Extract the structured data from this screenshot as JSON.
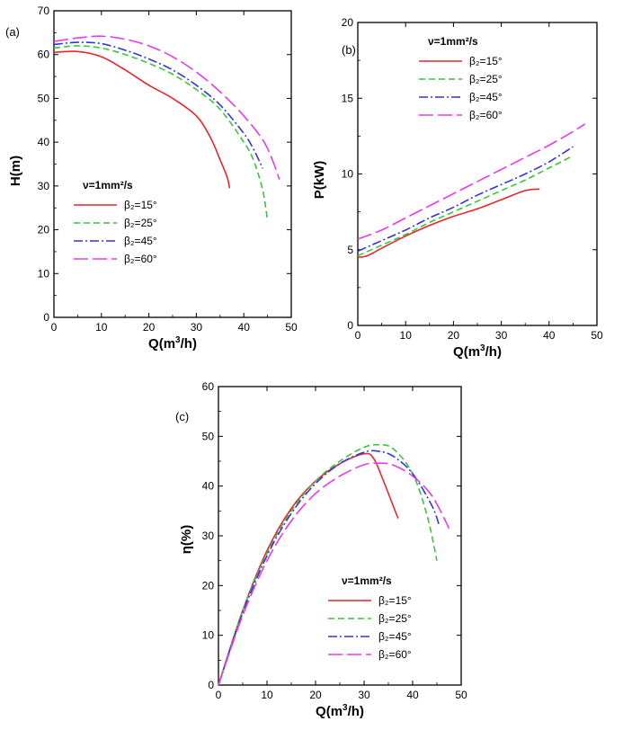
{
  "colors": {
    "beta15": "#e8262b",
    "beta25": "#3cc43c",
    "beta45": "#3535d8",
    "beta60": "#e83ae8"
  },
  "chart_data": [
    {
      "id": "a",
      "type": "line",
      "panel_label": "(a)",
      "xlabel_main": "Q(m",
      "xlabel_sup": "3",
      "xlabel_tail": "/h)",
      "ylabel": "H(m)",
      "xlim": [
        0,
        50
      ],
      "ylim": [
        0,
        70
      ],
      "xticks": [
        0,
        10,
        20,
        30,
        40,
        50
      ],
      "yticks": [
        0,
        10,
        20,
        30,
        40,
        50,
        60,
        70
      ],
      "legend_title": "ν=1mm²/s",
      "legend_position": "lower-left",
      "series": [
        {
          "name": "β₂=15°",
          "beta": "15",
          "style": "solid",
          "color_key": "beta15",
          "x": [
            0,
            5,
            10,
            15,
            20,
            25,
            30,
            33,
            35,
            36.5,
            37
          ],
          "y": [
            60.5,
            60.7,
            59.5,
            56.5,
            53,
            50,
            46,
            41,
            36,
            32,
            29.5
          ]
        },
        {
          "name": "β₂=25°",
          "beta": "25",
          "style": "dash",
          "color_key": "beta25",
          "x": [
            0,
            5,
            10,
            15,
            20,
            25,
            30,
            35,
            40,
            42,
            44,
            45
          ],
          "y": [
            61.5,
            62,
            61.5,
            60,
            58,
            55.5,
            52,
            47.5,
            40,
            36,
            29,
            22
          ]
        },
        {
          "name": "β₂=45°",
          "beta": "45",
          "style": "dashdot",
          "color_key": "beta45",
          "x": [
            0,
            5,
            10,
            15,
            20,
            25,
            30,
            35,
            40,
            42,
            44
          ],
          "y": [
            62.3,
            62.8,
            62.5,
            61,
            59,
            56.5,
            53,
            48.5,
            42,
            38.5,
            34
          ]
        },
        {
          "name": "β₂=60°",
          "beta": "60",
          "style": "longdash",
          "color_key": "beta60",
          "x": [
            0,
            5,
            10,
            15,
            20,
            25,
            30,
            35,
            40,
            44,
            46,
            47.5
          ],
          "y": [
            63,
            63.8,
            64.2,
            63.5,
            62,
            59.5,
            56,
            51.5,
            46,
            40.5,
            36,
            31.5
          ]
        }
      ]
    },
    {
      "id": "b",
      "type": "line",
      "panel_label": "(b)",
      "xlabel_main": "Q(m",
      "xlabel_sup": "3",
      "xlabel_tail": "/h)",
      "ylabel": "P(kW)",
      "xlim": [
        0,
        50
      ],
      "ylim": [
        0,
        20
      ],
      "xticks": [
        0,
        10,
        20,
        30,
        40,
        50
      ],
      "yticks": [
        0,
        5,
        10,
        15,
        20
      ],
      "legend_title": "ν=1mm²/s",
      "legend_position": "top-left",
      "series": [
        {
          "name": "β₂=15°",
          "beta": "15",
          "style": "solid",
          "color_key": "beta15",
          "x": [
            0,
            2,
            5,
            10,
            15,
            20,
            25,
            30,
            35,
            38
          ],
          "y": [
            4.5,
            4.6,
            5.1,
            5.9,
            6.6,
            7.2,
            7.7,
            8.3,
            8.9,
            9.0
          ]
        },
        {
          "name": "β₂=25°",
          "beta": "25",
          "style": "dash",
          "color_key": "beta25",
          "x": [
            0,
            5,
            10,
            15,
            20,
            25,
            30,
            35,
            40,
            45
          ],
          "y": [
            4.6,
            5.3,
            6.0,
            6.8,
            7.5,
            8.2,
            8.9,
            9.6,
            10.4,
            11.2
          ]
        },
        {
          "name": "β₂=45°",
          "beta": "45",
          "style": "dashdot",
          "color_key": "beta45",
          "x": [
            0,
            5,
            10,
            15,
            20,
            25,
            30,
            35,
            40,
            45
          ],
          "y": [
            4.9,
            5.6,
            6.3,
            7.1,
            7.8,
            8.6,
            9.3,
            10.0,
            10.8,
            11.8
          ]
        },
        {
          "name": "β₂=60°",
          "beta": "60",
          "style": "longdash",
          "color_key": "beta60",
          "x": [
            0,
            5,
            10,
            15,
            20,
            25,
            30,
            35,
            40,
            45,
            47.5
          ],
          "y": [
            5.7,
            6.3,
            7.1,
            7.9,
            8.7,
            9.5,
            10.3,
            11.1,
            11.9,
            12.8,
            13.3
          ]
        }
      ]
    },
    {
      "id": "c",
      "type": "line",
      "panel_label": "(c)",
      "xlabel_main": "Q(m",
      "xlabel_sup": "3",
      "xlabel_tail": "/h)",
      "ylabel": "η(%)",
      "xlim": [
        0,
        50
      ],
      "ylim": [
        0,
        60
      ],
      "xticks": [
        0,
        10,
        20,
        30,
        40,
        50
      ],
      "yticks": [
        0,
        10,
        20,
        30,
        40,
        50,
        60
      ],
      "legend_title": "ν=1mm²/s",
      "legend_position": "lower-right",
      "series": [
        {
          "name": "β₂=15°",
          "beta": "15",
          "style": "solid",
          "color_key": "beta15",
          "x": [
            0,
            5,
            10,
            15,
            20,
            25,
            30,
            32,
            34,
            36,
            37
          ],
          "y": [
            0,
            15,
            27,
            35.5,
            41,
            44.5,
            46.5,
            45.5,
            41,
            36,
            33.5
          ]
        },
        {
          "name": "β₂=25°",
          "beta": "25",
          "style": "dash",
          "color_key": "beta25",
          "x": [
            0,
            5,
            10,
            15,
            20,
            25,
            30,
            33,
            36,
            40,
            43,
            45
          ],
          "y": [
            0,
            15,
            26.5,
            35,
            41,
            45,
            47.8,
            48.3,
            47.5,
            42.5,
            34,
            25
          ]
        },
        {
          "name": "β₂=45°",
          "beta": "45",
          "style": "dashdot",
          "color_key": "beta45",
          "x": [
            0,
            5,
            10,
            15,
            20,
            25,
            30,
            33,
            36,
            40,
            44,
            45.5
          ],
          "y": [
            0,
            14.5,
            26,
            34.5,
            40.5,
            44.5,
            46.8,
            47,
            46,
            42.5,
            36,
            32
          ]
        },
        {
          "name": "β₂=60°",
          "beta": "60",
          "style": "longdash",
          "color_key": "beta60",
          "x": [
            0,
            5,
            10,
            15,
            20,
            25,
            30,
            33,
            36,
            40,
            44,
            47.5
          ],
          "y": [
            0,
            14,
            25,
            33,
            38.5,
            42,
            44.3,
            44.6,
            44.2,
            42,
            38,
            31.5
          ]
        }
      ]
    }
  ]
}
